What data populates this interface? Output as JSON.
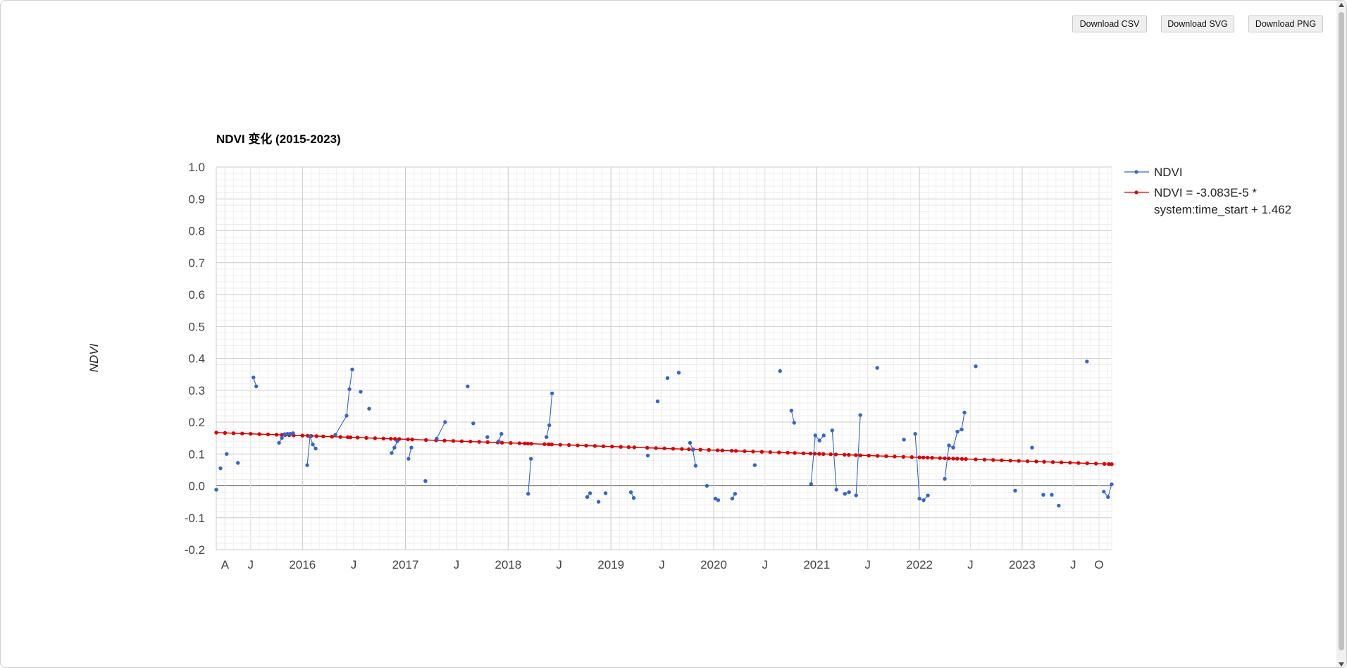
{
  "toolbar": {
    "download_csv": "Download CSV",
    "download_svg": "Download SVG",
    "download_png": "Download PNG"
  },
  "chart_data": {
    "type": "line",
    "title": "NDVI 变化 (2015-2023)",
    "xlabel": "",
    "ylabel": "NDVI",
    "ylim": [
      -0.2,
      1.0
    ],
    "xlim": [
      "2015-03-01",
      "2023-11-15"
    ],
    "yticks": [
      "1.0",
      "0.9",
      "0.8",
      "0.7",
      "0.6",
      "0.5",
      "0.4",
      "0.3",
      "0.2",
      "0.1",
      "0.0",
      "-0.1",
      "-0.2"
    ],
    "xticks": [
      {
        "label": "A",
        "date": "2015-04-01"
      },
      {
        "label": "J",
        "date": "2015-07-01"
      },
      {
        "label": "2016",
        "date": "2016-01-01"
      },
      {
        "label": "J",
        "date": "2016-07-01"
      },
      {
        "label": "2017",
        "date": "2017-01-01"
      },
      {
        "label": "J",
        "date": "2017-07-01"
      },
      {
        "label": "2018",
        "date": "2018-01-01"
      },
      {
        "label": "J",
        "date": "2018-07-01"
      },
      {
        "label": "2019",
        "date": "2019-01-01"
      },
      {
        "label": "J",
        "date": "2019-07-01"
      },
      {
        "label": "2020",
        "date": "2020-01-01"
      },
      {
        "label": "J",
        "date": "2020-07-01"
      },
      {
        "label": "2021",
        "date": "2021-01-01"
      },
      {
        "label": "J",
        "date": "2021-07-01"
      },
      {
        "label": "2022",
        "date": "2022-01-01"
      },
      {
        "label": "J",
        "date": "2022-07-01"
      },
      {
        "label": "2023",
        "date": "2023-01-01"
      },
      {
        "label": "J",
        "date": "2023-07-01"
      },
      {
        "label": "O",
        "date": "2023-10-01"
      }
    ],
    "grid": true,
    "legend_position": "right",
    "series": [
      {
        "name": "NDVI",
        "color": "#3366cc",
        "points": [
          {
            "x": "2015-03-01",
            "y": -0.012,
            "connect": false
          },
          {
            "x": "2015-03-16",
            "y": 0.055,
            "connect": false
          },
          {
            "x": "2015-04-07",
            "y": 0.1,
            "connect": false
          },
          {
            "x": "2015-05-17",
            "y": 0.072,
            "connect": false
          },
          {
            "x": "2015-07-11",
            "y": 0.34,
            "connect": false
          },
          {
            "x": "2015-07-21",
            "y": 0.312,
            "connect": true
          },
          {
            "x": "2015-10-10",
            "y": 0.135,
            "connect": false
          },
          {
            "x": "2015-10-20",
            "y": 0.15,
            "connect": true
          },
          {
            "x": "2015-10-30",
            "y": 0.162,
            "connect": true
          },
          {
            "x": "2015-11-09",
            "y": 0.163,
            "connect": true
          },
          {
            "x": "2015-11-19",
            "y": 0.163,
            "connect": true
          },
          {
            "x": "2015-11-29",
            "y": 0.165,
            "connect": true
          },
          {
            "x": "2016-01-18",
            "y": 0.065,
            "connect": false
          },
          {
            "x": "2016-01-28",
            "y": 0.155,
            "connect": true
          },
          {
            "x": "2016-02-07",
            "y": 0.13,
            "connect": true
          },
          {
            "x": "2016-02-17",
            "y": 0.117,
            "connect": true
          },
          {
            "x": "2016-04-27",
            "y": 0.16,
            "connect": false
          },
          {
            "x": "2016-06-06",
            "y": 0.22,
            "connect": true
          },
          {
            "x": "2016-06-16",
            "y": 0.303,
            "connect": true
          },
          {
            "x": "2016-06-26",
            "y": 0.365,
            "connect": true
          },
          {
            "x": "2016-07-26",
            "y": 0.295,
            "connect": false
          },
          {
            "x": "2016-08-25",
            "y": 0.242,
            "connect": false
          },
          {
            "x": "2016-11-13",
            "y": 0.103,
            "connect": false
          },
          {
            "x": "2016-11-23",
            "y": 0.12,
            "connect": true
          },
          {
            "x": "2016-12-03",
            "y": 0.14,
            "connect": true
          },
          {
            "x": "2017-01-12",
            "y": 0.085,
            "connect": false
          },
          {
            "x": "2017-01-22",
            "y": 0.12,
            "connect": true
          },
          {
            "x": "2017-03-13",
            "y": 0.015,
            "connect": false
          },
          {
            "x": "2017-04-22",
            "y": 0.148,
            "connect": false
          },
          {
            "x": "2017-05-22",
            "y": 0.2,
            "connect": true
          },
          {
            "x": "2017-08-10",
            "y": 0.312,
            "connect": false
          },
          {
            "x": "2017-08-30",
            "y": 0.196,
            "connect": false
          },
          {
            "x": "2017-10-19",
            "y": 0.153,
            "connect": false
          },
          {
            "x": "2017-11-28",
            "y": 0.14,
            "connect": false
          },
          {
            "x": "2017-12-08",
            "y": 0.163,
            "connect": true
          },
          {
            "x": "2018-03-13",
            "y": -0.025,
            "connect": false
          },
          {
            "x": "2018-03-23",
            "y": 0.085,
            "connect": true
          },
          {
            "x": "2018-05-17",
            "y": 0.153,
            "connect": false
          },
          {
            "x": "2018-05-27",
            "y": 0.19,
            "connect": true
          },
          {
            "x": "2018-06-06",
            "y": 0.29,
            "connect": true
          },
          {
            "x": "2018-10-09",
            "y": -0.035,
            "connect": false
          },
          {
            "x": "2018-10-19",
            "y": -0.023,
            "connect": true
          },
          {
            "x": "2018-11-18",
            "y": -0.05,
            "connect": false
          },
          {
            "x": "2018-12-13",
            "y": -0.023,
            "connect": false
          },
          {
            "x": "2019-03-13",
            "y": -0.02,
            "connect": false
          },
          {
            "x": "2019-03-23",
            "y": -0.038,
            "connect": true
          },
          {
            "x": "2019-05-12",
            "y": 0.095,
            "connect": false
          },
          {
            "x": "2019-06-16",
            "y": 0.265,
            "connect": false
          },
          {
            "x": "2019-07-21",
            "y": 0.338,
            "connect": false
          },
          {
            "x": "2019-08-30",
            "y": 0.355,
            "connect": false
          },
          {
            "x": "2019-10-09",
            "y": 0.135,
            "connect": false
          },
          {
            "x": "2019-10-19",
            "y": 0.113,
            "connect": true
          },
          {
            "x": "2019-10-29",
            "y": 0.063,
            "connect": true
          },
          {
            "x": "2019-12-08",
            "y": 0.0,
            "connect": false
          },
          {
            "x": "2020-01-07",
            "y": -0.04,
            "connect": false
          },
          {
            "x": "2020-01-17",
            "y": -0.045,
            "connect": true
          },
          {
            "x": "2020-03-07",
            "y": -0.04,
            "connect": false
          },
          {
            "x": "2020-03-17",
            "y": -0.025,
            "connect": true
          },
          {
            "x": "2020-05-26",
            "y": 0.065,
            "connect": false
          },
          {
            "x": "2020-08-24",
            "y": 0.36,
            "connect": false
          },
          {
            "x": "2020-10-03",
            "y": 0.236,
            "connect": false
          },
          {
            "x": "2020-10-13",
            "y": 0.198,
            "connect": true
          },
          {
            "x": "2020-12-12",
            "y": 0.006,
            "connect": false
          },
          {
            "x": "2020-12-27",
            "y": 0.158,
            "connect": true
          },
          {
            "x": "2021-01-11",
            "y": 0.142,
            "connect": true
          },
          {
            "x": "2021-01-26",
            "y": 0.158,
            "connect": true
          },
          {
            "x": "2021-02-25",
            "y": 0.174,
            "connect": false
          },
          {
            "x": "2021-03-12",
            "y": -0.012,
            "connect": true
          },
          {
            "x": "2021-04-11",
            "y": -0.025,
            "connect": false
          },
          {
            "x": "2021-04-26",
            "y": -0.02,
            "connect": true
          },
          {
            "x": "2021-05-21",
            "y": -0.03,
            "connect": false
          },
          {
            "x": "2021-06-05",
            "y": 0.222,
            "connect": true
          },
          {
            "x": "2021-08-04",
            "y": 0.37,
            "connect": false
          },
          {
            "x": "2021-11-07",
            "y": 0.145,
            "connect": false
          },
          {
            "x": "2021-12-17",
            "y": 0.163,
            "connect": false
          },
          {
            "x": "2022-01-01",
            "y": -0.04,
            "connect": true
          },
          {
            "x": "2022-01-16",
            "y": -0.045,
            "connect": true
          },
          {
            "x": "2022-01-31",
            "y": -0.03,
            "connect": true
          },
          {
            "x": "2022-04-01",
            "y": 0.022,
            "connect": false
          },
          {
            "x": "2022-04-16",
            "y": 0.127,
            "connect": true
          },
          {
            "x": "2022-05-01",
            "y": 0.12,
            "connect": true
          },
          {
            "x": "2022-05-16",
            "y": 0.17,
            "connect": true
          },
          {
            "x": "2022-05-31",
            "y": 0.177,
            "connect": true
          },
          {
            "x": "2022-06-10",
            "y": 0.23,
            "connect": true
          },
          {
            "x": "2022-07-20",
            "y": 0.375,
            "connect": false
          },
          {
            "x": "2022-12-07",
            "y": -0.015,
            "connect": false
          },
          {
            "x": "2023-02-05",
            "y": 0.12,
            "connect": false
          },
          {
            "x": "2023-03-17",
            "y": -0.028,
            "connect": false
          },
          {
            "x": "2023-04-16",
            "y": -0.028,
            "connect": false
          },
          {
            "x": "2023-05-11",
            "y": -0.062,
            "connect": false
          },
          {
            "x": "2023-08-19",
            "y": 0.39,
            "connect": false
          },
          {
            "x": "2023-10-18",
            "y": -0.018,
            "connect": false
          },
          {
            "x": "2023-11-02",
            "y": -0.035,
            "connect": true
          },
          {
            "x": "2023-11-15",
            "y": 0.005,
            "connect": true
          }
        ]
      },
      {
        "name": "NDVI = -3.083E-5 * system:time_start + 1.462",
        "legend_lines": [
          "NDVI = -3.083E-5 *",
          "system:time_start + 1.462"
        ],
        "color": "#dc0000",
        "trend": {
          "x_start": "2015-03-01",
          "y_start": 0.167,
          "x_end": "2023-11-15",
          "y_end": 0.068
        },
        "marker_dates": [
          "2015-03-01",
          "2015-04-01",
          "2015-05-01",
          "2015-06-01",
          "2015-07-01",
          "2015-08-01",
          "2015-09-01",
          "2015-10-01",
          "2015-10-20",
          "2015-11-01",
          "2015-11-15",
          "2015-12-01",
          "2016-01-01",
          "2016-01-20",
          "2016-02-01",
          "2016-02-20",
          "2016-03-15",
          "2016-04-15",
          "2016-05-15",
          "2016-06-10",
          "2016-06-20",
          "2016-07-15",
          "2016-08-15",
          "2016-09-15",
          "2016-10-15",
          "2016-11-10",
          "2016-11-25",
          "2016-12-10",
          "2017-01-10",
          "2017-01-25",
          "2017-03-15",
          "2017-04-20",
          "2017-05-20",
          "2017-06-20",
          "2017-07-20",
          "2017-08-20",
          "2017-09-20",
          "2017-10-20",
          "2017-11-25",
          "2017-12-10",
          "2018-01-10",
          "2018-02-10",
          "2018-03-01",
          "2018-03-12",
          "2018-03-24",
          "2018-05-10",
          "2018-05-25",
          "2018-06-05",
          "2018-07-05",
          "2018-08-05",
          "2018-09-05",
          "2018-10-05",
          "2018-11-05",
          "2018-12-05",
          "2019-01-05",
          "2019-02-05",
          "2019-03-05",
          "2019-03-25",
          "2019-05-10",
          "2019-06-10",
          "2019-07-10",
          "2019-08-10",
          "2019-09-10",
          "2019-10-05",
          "2019-10-20",
          "2019-11-15",
          "2019-12-15",
          "2020-01-15",
          "2020-02-01",
          "2020-03-05",
          "2020-03-20",
          "2020-04-20",
          "2020-05-20",
          "2020-06-20",
          "2020-07-20",
          "2020-08-20",
          "2020-09-20",
          "2020-10-15",
          "2020-11-15",
          "2020-12-10",
          "2020-12-25",
          "2021-01-10",
          "2021-01-25",
          "2021-02-20",
          "2021-03-10",
          "2021-04-10",
          "2021-04-25",
          "2021-05-20",
          "2021-06-05",
          "2021-07-05",
          "2021-08-05",
          "2021-09-05",
          "2021-10-05",
          "2021-11-05",
          "2021-12-05",
          "2022-01-01",
          "2022-01-15",
          "2022-01-30",
          "2022-02-15",
          "2022-03-15",
          "2022-04-01",
          "2022-04-15",
          "2022-05-01",
          "2022-05-15",
          "2022-06-01",
          "2022-06-15",
          "2022-07-20",
          "2022-08-20",
          "2022-09-20",
          "2022-10-20",
          "2022-11-20",
          "2022-12-20",
          "2023-01-20",
          "2023-02-20",
          "2023-03-20",
          "2023-04-20",
          "2023-05-20",
          "2023-06-20",
          "2023-07-20",
          "2023-08-20",
          "2023-09-20",
          "2023-10-20",
          "2023-11-05",
          "2023-11-15"
        ]
      }
    ]
  }
}
